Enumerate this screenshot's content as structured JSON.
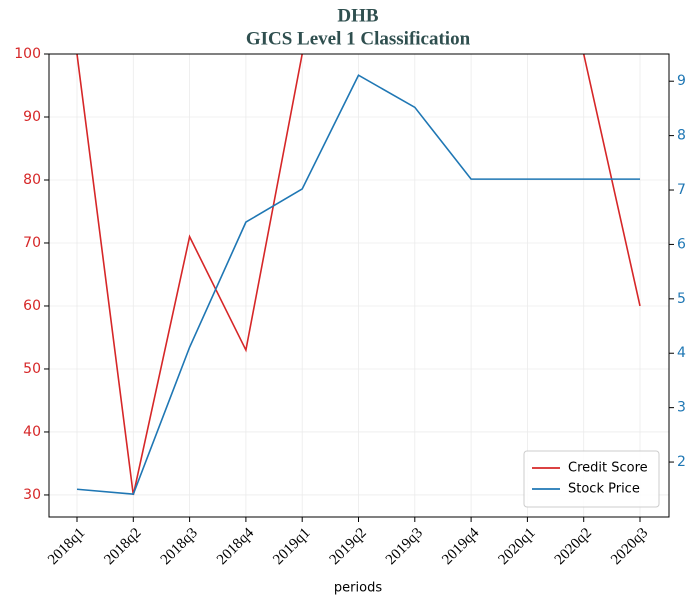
{
  "chart_data": {
    "type": "line",
    "title": "DHB",
    "subtitle": "GICS Level 1 Classification",
    "xlabel": "periods",
    "categories": [
      "2018q1",
      "2018q2",
      "2018q3",
      "2018q4",
      "2019q1",
      "2019q2",
      "2019q3",
      "2019q4",
      "2020q1",
      "2020q2",
      "2020q3"
    ],
    "series": [
      {
        "name": "Credit Score",
        "color": "#d62728",
        "values": [
          100,
          30,
          71,
          53,
          100,
          null,
          null,
          null,
          null,
          100,
          60
        ]
      },
      {
        "name": "Stock Price",
        "color": "#1f77b4",
        "axis": "y2",
        "values": [
          1.5,
          1.41,
          4.11,
          6.41,
          7.02,
          9.11,
          8.52,
          7.2,
          7.2,
          7.2,
          7.2
        ]
      }
    ],
    "ylim": [
      26.5,
      100
    ],
    "yticks": [
      30,
      40,
      50,
      60,
      70,
      80,
      90,
      100
    ],
    "y2lim": [
      0.99,
      9.5
    ],
    "y2ticks": [
      2,
      3,
      4,
      5,
      6,
      7,
      8,
      9
    ],
    "grid": true,
    "legend": "lower right"
  }
}
